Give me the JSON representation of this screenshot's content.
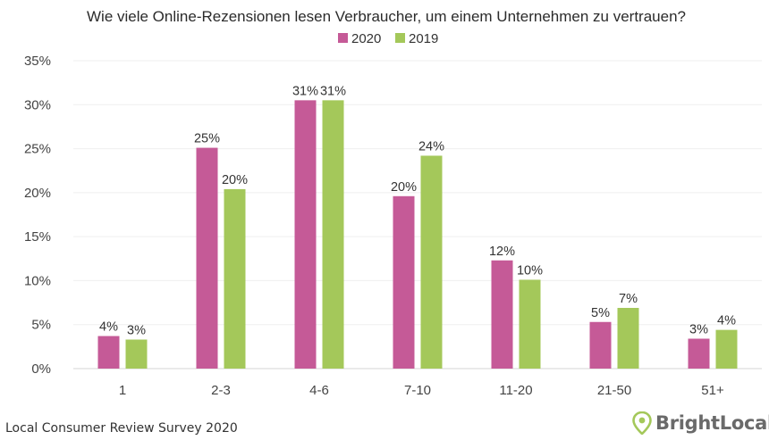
{
  "chart_data": {
    "type": "bar",
    "title": "Wie viele Online-Rezensionen lesen Verbraucher, um einem Unternehmen zu vertrauen?",
    "categories": [
      "1",
      "2-3",
      "4-6",
      "7-10",
      "11-20",
      "21-50",
      "51+"
    ],
    "series": [
      {
        "name": "2020",
        "color": "#c55a97",
        "values": [
          3.7,
          25.1,
          30.5,
          19.6,
          12.3,
          5.3,
          3.4
        ],
        "labels": [
          "4%",
          "25%",
          "31%",
          "20%",
          "12%",
          "5%",
          "3%"
        ]
      },
      {
        "name": "2019",
        "color": "#a4c85a",
        "values": [
          3.3,
          20.4,
          30.5,
          24.2,
          10.1,
          6.9,
          4.4
        ],
        "labels": [
          "3%",
          "20%",
          "31%",
          "24%",
          "10%",
          "7%",
          "4%"
        ]
      }
    ],
    "ylim": [
      0,
      35
    ],
    "yticks": [
      0,
      5,
      10,
      15,
      20,
      25,
      30,
      35
    ],
    "ytick_labels": [
      "0%",
      "5%",
      "10%",
      "15%",
      "20%",
      "25%",
      "30%",
      "35%"
    ],
    "xlabel": "",
    "ylabel": "",
    "legend_position": "top-center"
  },
  "footer": {
    "source": "Local Consumer Review Survey 2020",
    "brand": "BrightLocal",
    "brand_icon": "map-pin-icon",
    "brand_color": "#a4c85a"
  }
}
